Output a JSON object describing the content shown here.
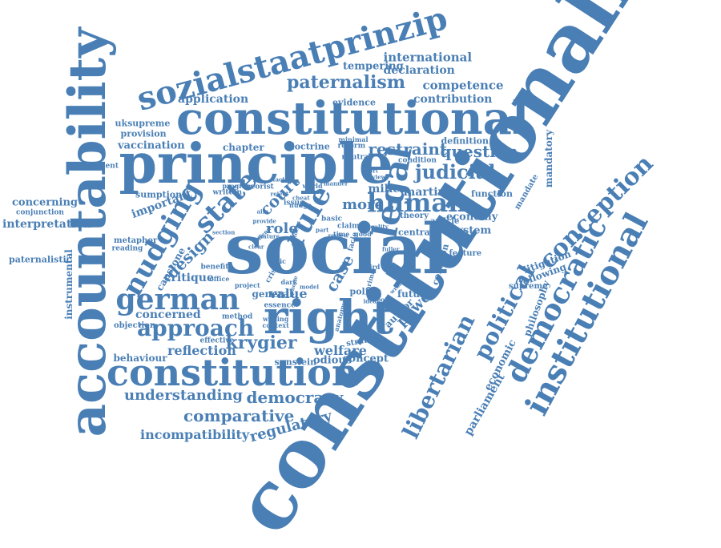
{
  "cloud": {
    "color": "#4a7fb5",
    "words": [
      "constitutionalism",
      "accountability",
      "social",
      "principle",
      "constitutional",
      "right",
      "constitution",
      "sozialstaatprinzip",
      "nudging",
      "german",
      "state",
      "legal",
      "rule",
      "human",
      "approach",
      "libertarian",
      "democratic",
      "institutional",
      "political",
      "conception",
      "paternalism",
      "krygier",
      "judicial",
      "restraint",
      "question",
      "democracy",
      "comparative",
      "understanding",
      "regulatory",
      "incompatibility",
      "court",
      "design",
      "role",
      "reflection",
      "case",
      "more",
      "miller",
      "martin",
      "important",
      "concerned",
      "value",
      "power",
      "welfare",
      "parliament",
      "economic",
      "philosophy",
      "mandatory",
      "international",
      "declaration",
      "tempering",
      "competence",
      "contribution",
      "application",
      "evidence",
      "doctrine",
      "chapter",
      "vaccination",
      "provision",
      "uksupreme",
      "government",
      "sumption",
      "concerning",
      "conjunction",
      "interpretation",
      "paternalistic",
      "instrumental",
      "metaphor",
      "reading",
      "capstone",
      "critique",
      "behaviour",
      "objection",
      "method",
      "general",
      "effective",
      "sunstein",
      "odious",
      "concept",
      "strategy",
      "author",
      "future",
      "litigation",
      "following",
      "supreme",
      "feature",
      "economy",
      "system",
      "article",
      "central",
      "common",
      "function",
      "mandate",
      "definition",
      "condition",
      "reform",
      "minimal",
      "neutral",
      "theory",
      "world",
      "issue",
      "program",
      "theorist",
      "written",
      "office",
      "project",
      "essence",
      "context",
      "writing",
      "anatomy",
      "benefit",
      "section",
      "ethic",
      "crisis",
      "dark",
      "politic",
      "prima",
      "facie",
      "claim",
      "time",
      "good",
      "basic",
      "fuller",
      "third",
      "part",
      "idea",
      "wrong",
      "nudge",
      "reject",
      "point",
      "model",
      "phone",
      "turn",
      "focus",
      "aim",
      "offend",
      "provide",
      "legality",
      "fact",
      "view",
      "short",
      "manner",
      "review",
      "cheat",
      "nature",
      "clear"
    ]
  }
}
